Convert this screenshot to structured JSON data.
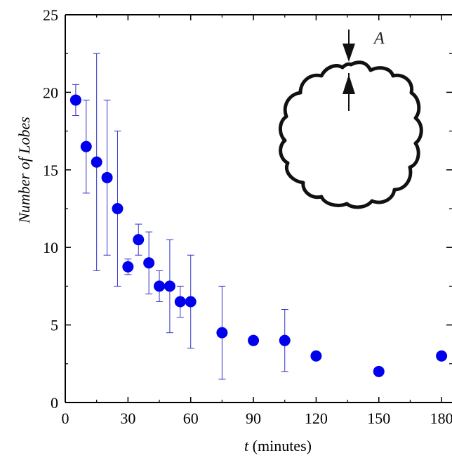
{
  "chart_data": {
    "type": "scatter",
    "title": "",
    "xlabel_var": "t",
    "xlabel_unit": " (minutes)",
    "ylabel": "Number of Lobes",
    "xlim": [
      0,
      185
    ],
    "ylim": [
      0,
      25
    ],
    "xticks": [
      0,
      30,
      60,
      90,
      120,
      150,
      180
    ],
    "yticks": [
      0,
      5,
      10,
      15,
      20,
      25
    ],
    "grid": false,
    "marker_color": "#0000ee",
    "errorbar_color": "#3333cc",
    "inset_label": "A",
    "points": [
      {
        "x": 5,
        "y": 19.5,
        "lo": 18.5,
        "hi": 20.5
      },
      {
        "x": 10,
        "y": 16.5,
        "lo": 13.5,
        "hi": 19.5
      },
      {
        "x": 15,
        "y": 15.5,
        "lo": 8.5,
        "hi": 22.5
      },
      {
        "x": 20,
        "y": 14.5,
        "lo": 9.5,
        "hi": 19.5
      },
      {
        "x": 25,
        "y": 12.5,
        "lo": 7.5,
        "hi": 17.5
      },
      {
        "x": 30,
        "y": 8.75,
        "lo": 8.25,
        "hi": 9.25
      },
      {
        "x": 35,
        "y": 10.5,
        "lo": 9.5,
        "hi": 11.5
      },
      {
        "x": 40,
        "y": 9.0,
        "lo": 7.0,
        "hi": 11.0
      },
      {
        "x": 45,
        "y": 7.5,
        "lo": 6.5,
        "hi": 8.5
      },
      {
        "x": 50,
        "y": 7.5,
        "lo": 4.5,
        "hi": 10.5
      },
      {
        "x": 55,
        "y": 6.5,
        "lo": 5.5,
        "hi": 7.5
      },
      {
        "x": 60,
        "y": 6.5,
        "lo": 3.5,
        "hi": 9.5
      },
      {
        "x": 75,
        "y": 4.5,
        "lo": 1.5,
        "hi": 7.5
      },
      {
        "x": 90,
        "y": 4.0,
        "lo": null,
        "hi": null
      },
      {
        "x": 105,
        "y": 4.0,
        "lo": 2.0,
        "hi": 6.0
      },
      {
        "x": 120,
        "y": 3.0,
        "lo": null,
        "hi": null
      },
      {
        "x": 150,
        "y": 2.0,
        "lo": null,
        "hi": null
      },
      {
        "x": 180,
        "y": 3.0,
        "lo": null,
        "hi": null
      }
    ]
  }
}
